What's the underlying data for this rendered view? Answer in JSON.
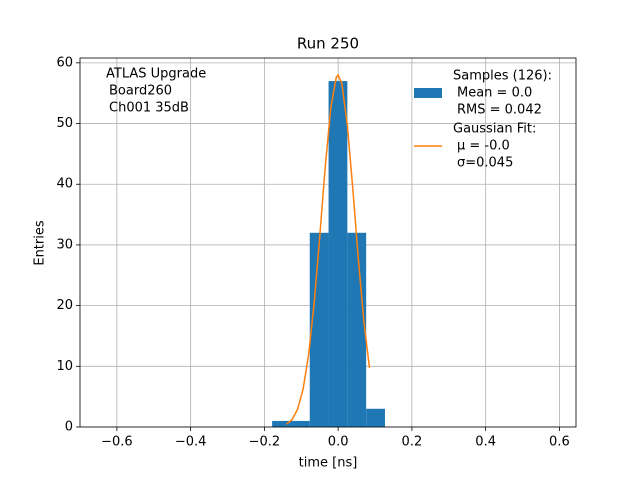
{
  "chart_data": {
    "type": "histogram",
    "title": "Run 250",
    "x_label": "time [ns]",
    "y_label": "Entries",
    "annotation": [
      "ATLAS Upgrade",
      "Board260",
      "Ch001 35dB"
    ],
    "xlim": [
      -0.7,
      0.645
    ],
    "ylim": [
      0,
      60.8
    ],
    "xticks": [
      {
        "value": -0.6,
        "label": "−0.6"
      },
      {
        "value": -0.4,
        "label": "−0.4"
      },
      {
        "value": -0.2,
        "label": "−0.2"
      },
      {
        "value": 0,
        "label": "0.0"
      },
      0.2,
      0.4,
      0.6
    ],
    "yticks": [
      0,
      10,
      20,
      30,
      40,
      50,
      60
    ],
    "grid": true,
    "legend": "upper right",
    "series": [
      {
        "type": "hist",
        "name": "Samples (126):",
        "details": [
          "Mean = 0.0",
          "RMS = 0.042"
        ],
        "color": "#1f77b4",
        "bins": [
          -0.179,
          -0.128,
          -0.077,
          -0.026,
          0.025,
          0.076,
          0.127
        ],
        "values": [
          1,
          1,
          32,
          57,
          32,
          3
        ]
      },
      {
        "type": "line",
        "name": "Gaussian Fit:",
        "details": [
          "μ = -0.0",
          "σ=0.045"
        ],
        "color": "#ff7f0e",
        "x": [
          -0.14,
          -0.125,
          -0.11,
          -0.095,
          -0.08,
          -0.065,
          -0.05,
          -0.035,
          -0.02,
          -0.005,
          0,
          0.01,
          0.025,
          0.04,
          0.055,
          0.07,
          0.085
        ],
        "values": [
          0.46,
          1.22,
          2.92,
          6.25,
          11.95,
          20.43,
          31.28,
          42.87,
          52.54,
          57.64,
          58,
          56.58,
          49.71,
          39.08,
          27.48,
          17.29,
          9.74
        ]
      }
    ]
  }
}
